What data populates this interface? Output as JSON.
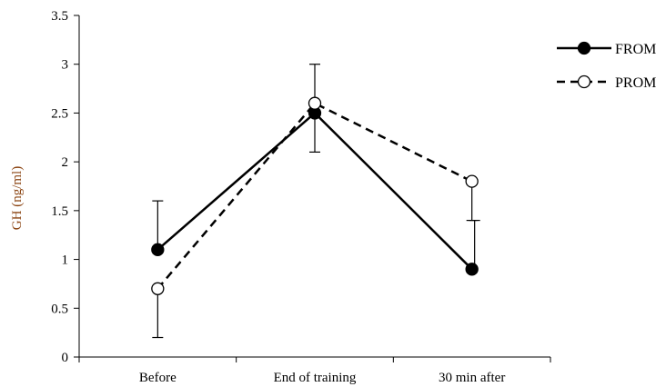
{
  "chart_data": {
    "type": "line",
    "title": "",
    "xlabel": "",
    "ylabel": "GH (ng/ml)",
    "categories": [
      "Before",
      "End of training",
      "30 min after"
    ],
    "ylim": [
      0,
      3.5
    ],
    "yticks": [
      "0",
      "0.5",
      "1",
      "1.5",
      "2",
      "2.5",
      "3",
      "3.5"
    ],
    "grid": false,
    "legend_position": "top-right",
    "series": [
      {
        "name": "FROM",
        "values": [
          1.1,
          2.5,
          0.9
        ],
        "error_up": [
          0.5,
          0.5,
          0.5
        ],
        "error_down": [
          0,
          0.4,
          0
        ],
        "line_style": "solid",
        "marker": "filled-circle",
        "color": "#000000"
      },
      {
        "name": "PROM",
        "values": [
          0.7,
          2.6,
          1.8
        ],
        "error_up": [
          0,
          0,
          0
        ],
        "error_down": [
          0.5,
          0,
          0.4
        ],
        "line_style": "dashed",
        "marker": "open-circle",
        "color": "#000000"
      }
    ]
  }
}
